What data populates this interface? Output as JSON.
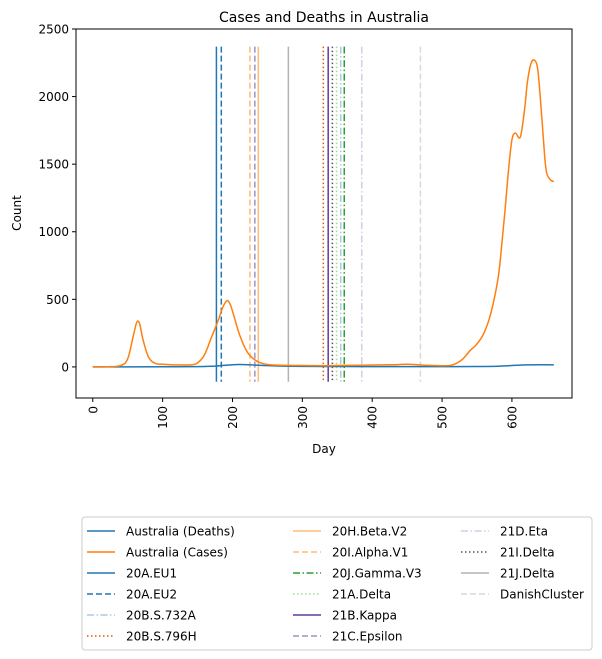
{
  "chart_data": {
    "type": "line",
    "title": "Cases and Deaths in Australia",
    "xlabel": "Day",
    "ylabel": "Count",
    "xlim": [
      -24,
      686
    ],
    "ylim": [
      -230,
      2500
    ],
    "xticks": [
      0,
      100,
      200,
      300,
      400,
      500,
      600
    ],
    "yticks": [
      0,
      500,
      1000,
      1500,
      2000,
      2500
    ],
    "grid": false,
    "legend_position": "below plot, 3 columns",
    "series": [
      {
        "name": "Australia (Deaths)",
        "color": "#1f77b4",
        "x": [
          0,
          50,
          100,
          150,
          170,
          190,
          210,
          230,
          260,
          300,
          350,
          400,
          450,
          500,
          550,
          580,
          600,
          620,
          640,
          660
        ],
        "y": [
          0,
          0,
          1,
          2,
          5,
          12,
          18,
          14,
          8,
          4,
          3,
          2,
          2,
          2,
          3,
          5,
          10,
          15,
          16,
          15
        ]
      },
      {
        "name": "Australia (Cases)",
        "color": "#ff7f0e",
        "x": [
          0,
          20,
          40,
          50,
          58,
          63,
          67,
          72,
          80,
          90,
          100,
          120,
          140,
          150,
          160,
          170,
          180,
          186,
          192,
          197,
          203,
          210,
          220,
          230,
          240,
          250,
          270,
          300,
          330,
          350,
          380,
          400,
          430,
          450,
          470,
          490,
          510,
          520,
          530,
          540,
          550,
          560,
          570,
          580,
          585,
          590,
          595,
          600,
          605,
          612,
          618,
          622,
          627,
          632,
          637,
          642,
          647,
          650,
          655,
          660
        ],
        "y": [
          0,
          1,
          10,
          60,
          230,
          330,
          320,
          200,
          70,
          25,
          20,
          15,
          15,
          30,
          90,
          220,
          350,
          440,
          490,
          460,
          360,
          240,
          120,
          60,
          30,
          18,
          12,
          10,
          9,
          10,
          12,
          14,
          16,
          20,
          14,
          10,
          10,
          25,
          60,
          120,
          170,
          250,
          400,
          650,
          880,
          1150,
          1450,
          1680,
          1730,
          1700,
          1900,
          2100,
          2240,
          2270,
          2200,
          1900,
          1550,
          1430,
          1385,
          1370
        ]
      }
    ],
    "vlines": [
      {
        "name": "20A.EU1",
        "x": 177,
        "color": "#1f77b4",
        "dash": "solid"
      },
      {
        "name": "20A.EU2",
        "x": 184,
        "color": "#1f77b4",
        "dash": "dashed"
      },
      {
        "name": "20B.S.732A",
        "x": 355,
        "color": "#aec7e8",
        "dash": "dashdot"
      },
      {
        "name": "20B.S.796H",
        "x": 330,
        "color": "#d95f02",
        "dash": "dotted"
      },
      {
        "name": "20H.Beta.V2",
        "x": 237,
        "color": "#ffbb78",
        "dash": "solid"
      },
      {
        "name": "20I.Alpha.V1",
        "x": 225,
        "color": "#ffbb78",
        "dash": "dashed"
      },
      {
        "name": "20J.Gamma.V3",
        "x": 360,
        "color": "#2ca02c",
        "dash": "dashdot"
      },
      {
        "name": "21A.Delta",
        "x": 349,
        "color": "#98df8a",
        "dash": "dotted"
      },
      {
        "name": "21B.Kappa",
        "x": 337,
        "color": "#5e3c99",
        "dash": "solid"
      },
      {
        "name": "21C.Epsilon",
        "x": 232,
        "color": "#9b93c9",
        "dash": "dashed"
      },
      {
        "name": "21D.Eta",
        "x": 385,
        "color": "#cfcfe6",
        "dash": "dashdot"
      },
      {
        "name": "21I.Delta",
        "x": 343,
        "color": "#555555",
        "dash": "dotted"
      },
      {
        "name": "21J.Delta",
        "x": 280,
        "color": "#b3b3b3",
        "dash": "solid"
      },
      {
        "name": "DanishCluster",
        "x": 469,
        "color": "#d9d9d9",
        "dash": "dashed"
      }
    ]
  }
}
